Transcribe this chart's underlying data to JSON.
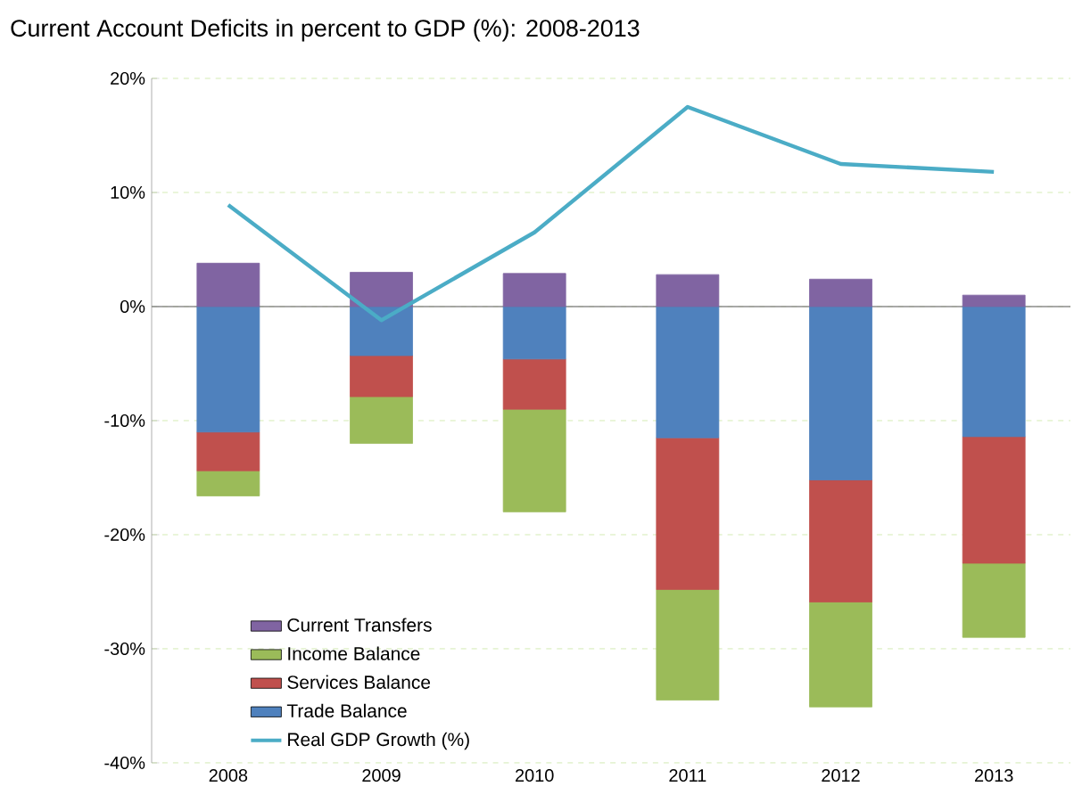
{
  "chart_data": {
    "type": "bar",
    "stacked": true,
    "title": "Current Account Deficits in percent to GDP (%): 2008-2013",
    "categories": [
      "2008",
      "2009",
      "2010",
      "2011",
      "2012",
      "2013"
    ],
    "series": [
      {
        "name": "Trade Balance",
        "color": "#4f81bd",
        "values": [
          -11.0,
          -4.3,
          -4.6,
          -11.5,
          -15.2,
          -11.4
        ]
      },
      {
        "name": "Services Balance",
        "color": "#c0504d",
        "values": [
          -3.4,
          -3.6,
          -4.4,
          -13.3,
          -10.7,
          -11.1
        ]
      },
      {
        "name": "Income Balance",
        "color": "#9bbb59",
        "values": [
          -2.2,
          -4.1,
          -9.0,
          -9.7,
          -9.2,
          -6.5
        ]
      },
      {
        "name": "Current Transfers",
        "color": "#8064a2",
        "values": [
          3.8,
          3.0,
          2.9,
          2.8,
          2.4,
          1.0
        ]
      },
      {
        "name": "Real GDP Growth (%)",
        "type": "line",
        "color": "#4bacc6",
        "values": [
          8.9,
          -1.2,
          6.5,
          17.5,
          12.5,
          11.8
        ]
      }
    ],
    "ylim": [
      -40,
      20
    ],
    "yticks": [
      {
        "value": -40,
        "label": "-40%"
      },
      {
        "value": -30,
        "label": "-30%"
      },
      {
        "value": -20,
        "label": "-20%"
      },
      {
        "value": -10,
        "label": "-10%"
      },
      {
        "value": 0,
        "label": "0%"
      },
      {
        "value": 10,
        "label": "10%"
      },
      {
        "value": 20,
        "label": "20%"
      }
    ],
    "grid": "y",
    "legend": "bottom left",
    "marker": "none"
  }
}
